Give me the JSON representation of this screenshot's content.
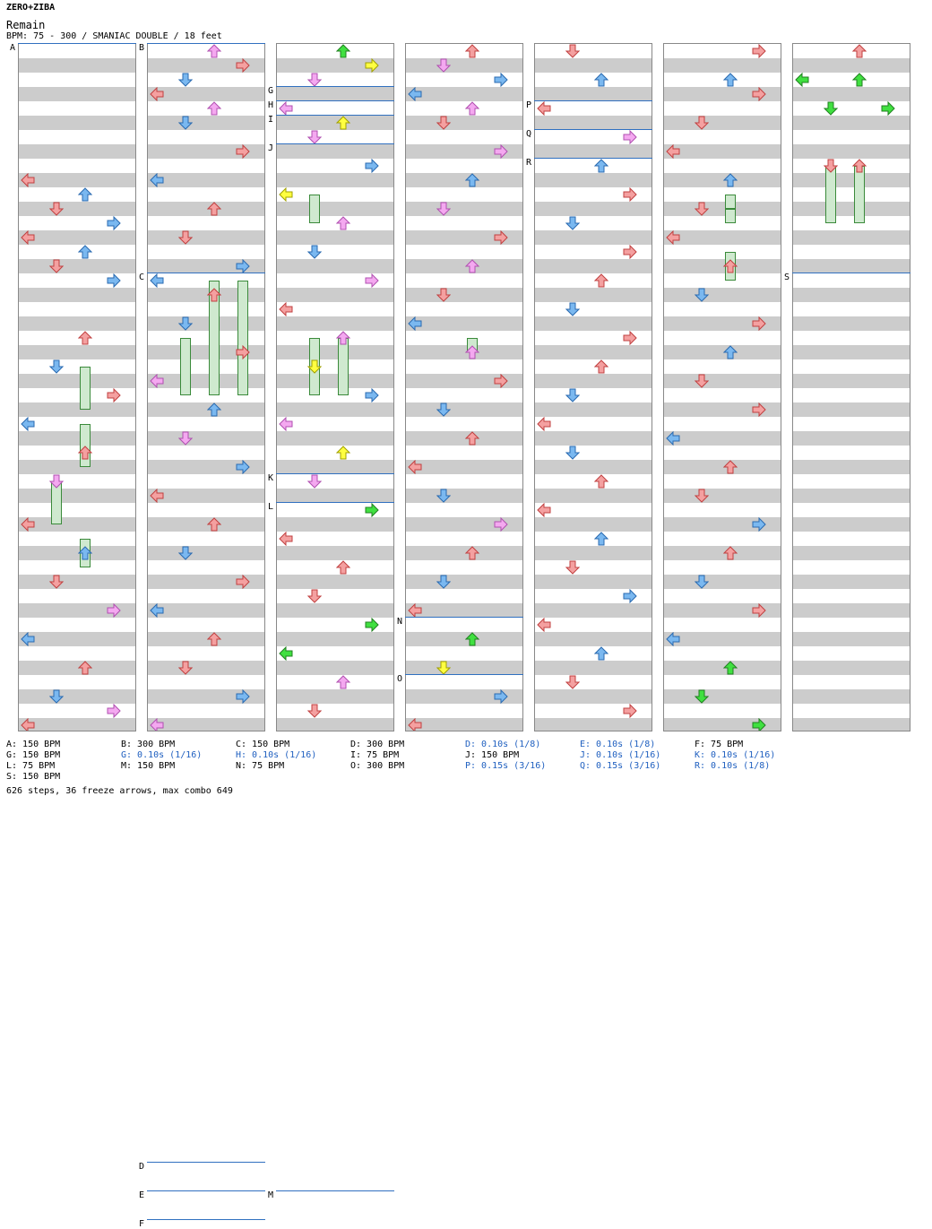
{
  "header": {
    "brand": "ZERO+ZIBA",
    "song": "Remain",
    "bpm_line": "BPM: 75 - 300 / SMANIAC DOUBLE / 18 feet"
  },
  "colors": {
    "left": "#f4a0a0",
    "down": "#7ab8f0",
    "up_pink": "#f4a8f0",
    "yellow": "#ffff40",
    "green": "#40e040",
    "freeze_fill": "#cfe9cf",
    "marker_line": "#3070c0"
  },
  "markers": [
    {
      "label": "A",
      "col": 0,
      "beat": 0
    },
    {
      "label": "B",
      "col": 1,
      "beat": 0
    },
    {
      "label": "C",
      "col": 1,
      "beat": 16
    },
    {
      "label": "D",
      "col": 1,
      "beat": 78
    },
    {
      "label": "E",
      "col": 1,
      "beat": 80
    },
    {
      "label": "F",
      "col": 1,
      "beat": 82
    },
    {
      "label": "G",
      "col": 2,
      "beat": 3
    },
    {
      "label": "H",
      "col": 2,
      "beat": 4
    },
    {
      "label": "I",
      "col": 2,
      "beat": 5
    },
    {
      "label": "J",
      "col": 2,
      "beat": 7
    },
    {
      "label": "K",
      "col": 2,
      "beat": 30
    },
    {
      "label": "L",
      "col": 2,
      "beat": 32
    },
    {
      "label": "M",
      "col": 2,
      "beat": 80
    },
    {
      "label": "N",
      "col": 3,
      "beat": 40
    },
    {
      "label": "O",
      "col": 3,
      "beat": 44
    },
    {
      "label": "P",
      "col": 4,
      "beat": 4
    },
    {
      "label": "Q",
      "col": 4,
      "beat": 6
    },
    {
      "label": "R",
      "col": 4,
      "beat": 8
    },
    {
      "label": "S",
      "col": 6,
      "beat": 16
    }
  ],
  "legend": [
    {
      "text": "A: 150 BPM",
      "blue": false
    },
    {
      "text": "B: 300 BPM",
      "blue": false
    },
    {
      "text": "C: 150 BPM",
      "blue": false
    },
    {
      "text": "D: 300 BPM",
      "blue": false
    },
    {
      "text": "D: 0.10s (1/8)",
      "blue": true
    },
    {
      "text": "E: 0.10s (1/8)",
      "blue": true
    },
    {
      "text": "F: 75 BPM",
      "blue": false
    },
    {
      "text": "G: 150 BPM",
      "blue": false
    },
    {
      "text": "G: 0.10s (1/16)",
      "blue": true
    },
    {
      "text": "H: 0.10s (1/16)",
      "blue": true
    },
    {
      "text": "I: 75 BPM",
      "blue": false
    },
    {
      "text": "J: 150 BPM",
      "blue": false
    },
    {
      "text": "J: 0.10s (1/16)",
      "blue": true
    },
    {
      "text": "K: 0.10s (1/16)",
      "blue": true
    },
    {
      "text": "L: 75 BPM",
      "blue": false
    },
    {
      "text": "M: 150 BPM",
      "blue": false
    },
    {
      "text": "N: 75 BPM",
      "blue": false
    },
    {
      "text": "O: 300 BPM",
      "blue": false
    },
    {
      "text": "P: 0.15s (3/16)",
      "blue": true
    },
    {
      "text": "Q: 0.15s (3/16)",
      "blue": true
    },
    {
      "text": "R: 0.10s (1/8)",
      "blue": true
    },
    {
      "text": "S: 150 BPM",
      "blue": false
    }
  ],
  "stats": "626 steps, 36 freeze arrows, max combo 649",
  "notes": [
    [
      0,
      9,
      0,
      "red"
    ],
    [
      0,
      10,
      2,
      "blue"
    ],
    [
      0,
      11,
      1,
      "red"
    ],
    [
      0,
      12,
      3,
      "blue"
    ],
    [
      0,
      13,
      0,
      "red"
    ],
    [
      0,
      14,
      2,
      "blue"
    ],
    [
      0,
      15,
      1,
      "red"
    ],
    [
      0,
      16,
      3,
      "blue"
    ],
    [
      0,
      20,
      2,
      "red"
    ],
    [
      0,
      22,
      1,
      "blue"
    ],
    [
      0,
      24,
      3,
      "red"
    ],
    [
      0,
      26,
      0,
      "blue"
    ],
    [
      0,
      28,
      2,
      "red"
    ],
    [
      0,
      30,
      1,
      "pink"
    ],
    [
      0,
      33,
      0,
      "red"
    ],
    [
      0,
      35,
      2,
      "blue"
    ],
    [
      0,
      37,
      1,
      "red"
    ],
    [
      0,
      39,
      3,
      "pink"
    ],
    [
      0,
      41,
      0,
      "blue"
    ],
    [
      0,
      43,
      2,
      "red"
    ],
    [
      0,
      45,
      1,
      "blue"
    ],
    [
      0,
      46,
      3,
      "pink"
    ],
    [
      0,
      47,
      0,
      "red"
    ],
    [
      1,
      0,
      2,
      "pink"
    ],
    [
      1,
      1,
      3,
      "red"
    ],
    [
      1,
      2,
      1,
      "blue"
    ],
    [
      1,
      3,
      0,
      "red"
    ],
    [
      1,
      4,
      2,
      "pink"
    ],
    [
      1,
      5,
      1,
      "blue"
    ],
    [
      1,
      7,
      3,
      "red"
    ],
    [
      1,
      9,
      0,
      "blue"
    ],
    [
      1,
      11,
      2,
      "red"
    ],
    [
      1,
      13,
      1,
      "red"
    ],
    [
      1,
      15,
      3,
      "blue"
    ],
    [
      1,
      16,
      0,
      "blue"
    ],
    [
      1,
      17,
      2,
      "red"
    ],
    [
      1,
      19,
      1,
      "blue"
    ],
    [
      1,
      21,
      3,
      "red"
    ],
    [
      1,
      23,
      0,
      "pink"
    ],
    [
      1,
      25,
      2,
      "blue"
    ],
    [
      1,
      27,
      1,
      "pink"
    ],
    [
      1,
      29,
      3,
      "blue"
    ],
    [
      1,
      31,
      0,
      "red"
    ],
    [
      1,
      33,
      2,
      "red"
    ],
    [
      1,
      35,
      1,
      "blue"
    ],
    [
      1,
      37,
      3,
      "red"
    ],
    [
      1,
      39,
      0,
      "blue"
    ],
    [
      1,
      41,
      2,
      "red"
    ],
    [
      1,
      43,
      1,
      "red"
    ],
    [
      1,
      45,
      3,
      "blue"
    ],
    [
      1,
      47,
      0,
      "pink"
    ],
    [
      2,
      0,
      2,
      "green"
    ],
    [
      2,
      1,
      3,
      "yellow"
    ],
    [
      2,
      2,
      1,
      "pink"
    ],
    [
      2,
      4,
      0,
      "pink"
    ],
    [
      2,
      5,
      2,
      "yellow"
    ],
    [
      2,
      6,
      1,
      "pink"
    ],
    [
      2,
      8,
      3,
      "blue"
    ],
    [
      2,
      10,
      0,
      "yellow"
    ],
    [
      2,
      12,
      2,
      "pink"
    ],
    [
      2,
      14,
      1,
      "blue"
    ],
    [
      2,
      16,
      3,
      "pink"
    ],
    [
      2,
      18,
      0,
      "red"
    ],
    [
      2,
      20,
      2,
      "pink"
    ],
    [
      2,
      22,
      1,
      "yellow"
    ],
    [
      2,
      24,
      3,
      "blue"
    ],
    [
      2,
      26,
      0,
      "pink"
    ],
    [
      2,
      28,
      2,
      "yellow"
    ],
    [
      2,
      30,
      1,
      "pink"
    ],
    [
      2,
      32,
      3,
      "green"
    ],
    [
      2,
      34,
      0,
      "red"
    ],
    [
      2,
      36,
      2,
      "red"
    ],
    [
      2,
      38,
      1,
      "red"
    ],
    [
      2,
      40,
      3,
      "green"
    ],
    [
      2,
      42,
      0,
      "green"
    ],
    [
      2,
      44,
      2,
      "pink"
    ],
    [
      2,
      46,
      1,
      "red"
    ],
    [
      3,
      0,
      2,
      "red"
    ],
    [
      3,
      1,
      1,
      "pink"
    ],
    [
      3,
      2,
      3,
      "blue"
    ],
    [
      3,
      3,
      0,
      "blue"
    ],
    [
      3,
      4,
      2,
      "pink"
    ],
    [
      3,
      5,
      1,
      "red"
    ],
    [
      3,
      7,
      3,
      "pink"
    ],
    [
      3,
      9,
      2,
      "blue"
    ],
    [
      3,
      11,
      1,
      "pink"
    ],
    [
      3,
      13,
      3,
      "red"
    ],
    [
      3,
      15,
      2,
      "pink"
    ],
    [
      3,
      17,
      1,
      "red"
    ],
    [
      3,
      19,
      0,
      "blue"
    ],
    [
      3,
      21,
      2,
      "pink"
    ],
    [
      3,
      23,
      3,
      "red"
    ],
    [
      3,
      25,
      1,
      "blue"
    ],
    [
      3,
      27,
      2,
      "red"
    ],
    [
      3,
      29,
      0,
      "red"
    ],
    [
      3,
      31,
      1,
      "blue"
    ],
    [
      3,
      33,
      3,
      "pink"
    ],
    [
      3,
      35,
      2,
      "red"
    ],
    [
      3,
      37,
      1,
      "blue"
    ],
    [
      3,
      39,
      0,
      "red"
    ],
    [
      3,
      41,
      2,
      "green"
    ],
    [
      3,
      43,
      1,
      "yellow"
    ],
    [
      3,
      45,
      3,
      "blue"
    ],
    [
      3,
      47,
      0,
      "red"
    ],
    [
      4,
      0,
      1,
      "red"
    ],
    [
      4,
      2,
      2,
      "blue"
    ],
    [
      4,
      4,
      0,
      "red"
    ],
    [
      4,
      6,
      3,
      "pink"
    ],
    [
      4,
      8,
      2,
      "blue"
    ],
    [
      4,
      10,
      3,
      "red"
    ],
    [
      4,
      12,
      1,
      "blue"
    ],
    [
      4,
      14,
      3,
      "red"
    ],
    [
      4,
      16,
      2,
      "red"
    ],
    [
      4,
      18,
      1,
      "blue"
    ],
    [
      4,
      20,
      3,
      "red"
    ],
    [
      4,
      22,
      2,
      "red"
    ],
    [
      4,
      24,
      1,
      "blue"
    ],
    [
      4,
      26,
      0,
      "red"
    ],
    [
      4,
      28,
      1,
      "blue"
    ],
    [
      4,
      30,
      2,
      "red"
    ],
    [
      4,
      32,
      0,
      "red"
    ],
    [
      4,
      34,
      2,
      "blue"
    ],
    [
      4,
      36,
      1,
      "red"
    ],
    [
      4,
      38,
      3,
      "blue"
    ],
    [
      4,
      40,
      0,
      "red"
    ],
    [
      4,
      42,
      2,
      "blue"
    ],
    [
      4,
      44,
      1,
      "red"
    ],
    [
      4,
      46,
      3,
      "red"
    ],
    [
      5,
      0,
      3,
      "red"
    ],
    [
      5,
      2,
      2,
      "blue"
    ],
    [
      5,
      3,
      3,
      "red"
    ],
    [
      5,
      5,
      1,
      "red"
    ],
    [
      5,
      7,
      0,
      "red"
    ],
    [
      5,
      9,
      2,
      "blue"
    ],
    [
      5,
      11,
      1,
      "red"
    ],
    [
      5,
      13,
      0,
      "red"
    ],
    [
      5,
      15,
      2,
      "red"
    ],
    [
      5,
      17,
      1,
      "blue"
    ],
    [
      5,
      19,
      3,
      "red"
    ],
    [
      5,
      21,
      2,
      "blue"
    ],
    [
      5,
      23,
      1,
      "red"
    ],
    [
      5,
      25,
      3,
      "red"
    ],
    [
      5,
      27,
      0,
      "blue"
    ],
    [
      5,
      29,
      2,
      "red"
    ],
    [
      5,
      31,
      1,
      "red"
    ],
    [
      5,
      33,
      3,
      "blue"
    ],
    [
      5,
      35,
      2,
      "red"
    ],
    [
      5,
      37,
      1,
      "blue"
    ],
    [
      5,
      39,
      3,
      "red"
    ],
    [
      5,
      41,
      0,
      "blue"
    ],
    [
      5,
      43,
      2,
      "green"
    ],
    [
      5,
      45,
      1,
      "green"
    ],
    [
      5,
      47,
      3,
      "green"
    ],
    [
      6,
      0,
      2,
      "red"
    ],
    [
      6,
      2,
      0,
      "green"
    ],
    [
      6,
      2,
      2,
      "green"
    ],
    [
      6,
      4,
      1,
      "green"
    ],
    [
      6,
      4,
      3,
      "green"
    ],
    [
      6,
      8,
      1,
      "red"
    ],
    [
      6,
      8,
      2,
      "red"
    ]
  ],
  "freezes": [
    [
      0,
      22,
      25,
      2
    ],
    [
      0,
      26,
      29,
      2
    ],
    [
      0,
      30,
      33,
      1
    ],
    [
      0,
      34,
      36,
      2
    ],
    [
      1,
      16,
      24,
      2
    ],
    [
      1,
      16,
      24,
      3
    ],
    [
      1,
      20,
      24,
      1
    ],
    [
      2,
      20,
      24,
      1
    ],
    [
      2,
      20,
      24,
      2
    ],
    [
      2,
      10,
      12,
      1
    ],
    [
      3,
      20,
      21,
      2
    ],
    [
      5,
      10,
      11,
      2
    ],
    [
      5,
      11,
      12,
      2
    ],
    [
      5,
      14,
      16,
      2
    ],
    [
      6,
      8,
      12,
      1
    ],
    [
      6,
      8,
      12,
      2
    ]
  ]
}
